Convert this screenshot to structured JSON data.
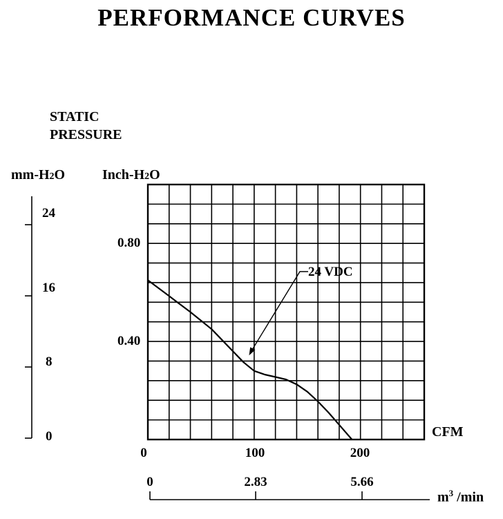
{
  "title": "PERFORMANCE  CURVES",
  "chart_data": {
    "type": "line",
    "ylabel_lines": [
      "STATIC",
      "PRESSURE"
    ],
    "left_axis": {
      "label": "mm-H2O",
      "label_main": "mm-H",
      "label_sub": "2",
      "label_end": "O",
      "ticks": [
        0,
        8,
        16,
        24
      ],
      "tick_labels": [
        "0",
        "8",
        "16",
        "24"
      ],
      "range": [
        0,
        27.2
      ]
    },
    "right_axis": {
      "label": "Inch-H2O",
      "label_main": "Inch-H",
      "label_sub": "2",
      "label_end": "O",
      "ticks": [
        0.4,
        0.8
      ],
      "tick_labels": [
        "0.40",
        "0.80"
      ],
      "range": [
        0,
        1.04
      ]
    },
    "xlabel": "CFM",
    "x_range": [
      0,
      260
    ],
    "x_ticks": [
      0,
      100,
      200
    ],
    "x_tick_labels": [
      "0",
      "100",
      "200"
    ],
    "x2_axis": {
      "label": "m³ /min",
      "label_main": "m",
      "label_sup": "3",
      "label_end": " /min",
      "ticks": [
        0,
        2.83,
        5.66
      ],
      "tick_labels": [
        "0",
        "2.83",
        "5.66"
      ]
    },
    "grid": true,
    "series": [
      {
        "name": "24 VDC",
        "x": [
          0,
          20,
          40,
          60,
          80,
          90,
          100,
          110,
          120,
          130,
          140,
          150,
          160,
          170,
          180,
          192
        ],
        "y": [
          0.65,
          0.585,
          0.52,
          0.45,
          0.36,
          0.315,
          0.28,
          0.265,
          0.255,
          0.245,
          0.225,
          0.195,
          0.155,
          0.11,
          0.06,
          0.0
        ]
      }
    ],
    "annotation": {
      "text": "24 VDC",
      "target": [
        90,
        0.315
      ]
    }
  }
}
